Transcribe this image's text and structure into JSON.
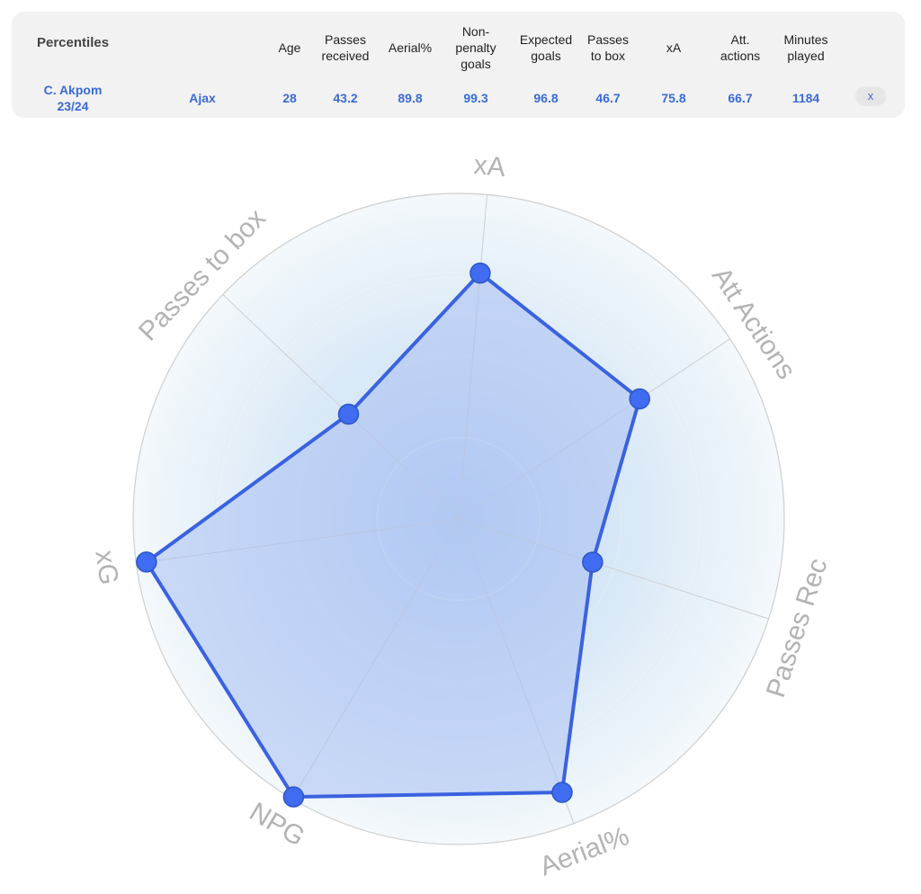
{
  "table": {
    "title": "Percentiles",
    "headers": [
      {
        "key": "age",
        "lines": [
          "Age"
        ]
      },
      {
        "key": "passes_received",
        "lines": [
          "Passes",
          "received"
        ]
      },
      {
        "key": "aerial",
        "lines": [
          "Aerial%"
        ]
      },
      {
        "key": "npg",
        "lines": [
          "Non-",
          "penalty",
          "goals"
        ]
      },
      {
        "key": "xg",
        "lines": [
          "Expected",
          "goals"
        ]
      },
      {
        "key": "passes_box",
        "lines": [
          "Passes",
          "to box"
        ]
      },
      {
        "key": "xa",
        "lines": [
          "xA"
        ]
      },
      {
        "key": "att_actions",
        "lines": [
          "Att.",
          "actions"
        ]
      },
      {
        "key": "minutes",
        "lines": [
          "Minutes",
          "played"
        ]
      }
    ],
    "player": {
      "name": "C. Akpom",
      "season": "23/24",
      "team": "Ajax"
    },
    "values": [
      "28",
      "43.2",
      "89.8",
      "99.3",
      "96.8",
      "46.7",
      "75.8",
      "66.7",
      "1184"
    ],
    "close_label": "x"
  },
  "chart_data": {
    "type": "radar",
    "axes": [
      "xA",
      "Att Actions",
      "Passes Rec",
      "Aerial%",
      "NPG",
      "xG",
      "Passes to box"
    ],
    "values": [
      75.8,
      66.7,
      43.2,
      89.8,
      99.3,
      96.8,
      46.7
    ],
    "range": [
      0,
      100
    ],
    "colors": {
      "line": "#3a62e0",
      "fill": "#a9c0f2",
      "point": "#3f6cf0",
      "grid": "#cfcfcf",
      "label": "#b3b3b3"
    }
  }
}
